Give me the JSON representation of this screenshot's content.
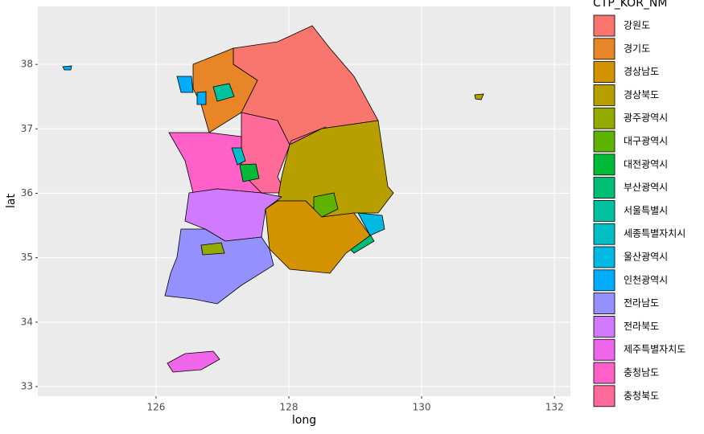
{
  "chart_data": {
    "type": "map",
    "x_label": "long",
    "y_label": "lat",
    "xlim": [
      124.22,
      132.24
    ],
    "ylim": [
      32.85,
      38.9
    ],
    "xticks": [
      126,
      128,
      130,
      132
    ],
    "yticks": [
      33,
      34,
      35,
      36,
      37,
      38
    ],
    "grid": true,
    "legend_title": "CTP_KOR_NM",
    "legend_position": "right",
    "series": [
      {
        "name": "강원도",
        "color": "#F8766D"
      },
      {
        "name": "경기도",
        "color": "#E88526"
      },
      {
        "name": "경상남도",
        "color": "#D39200"
      },
      {
        "name": "경상북도",
        "color": "#B79F00"
      },
      {
        "name": "광주광역시",
        "color": "#93AA00"
      },
      {
        "name": "대구광역시",
        "color": "#5EB300"
      },
      {
        "name": "대전광역시",
        "color": "#00BA38"
      },
      {
        "name": "부산광역시",
        "color": "#00BF74"
      },
      {
        "name": "서울특별시",
        "color": "#00C19F"
      },
      {
        "name": "세종특별자치시",
        "color": "#00BFC4"
      },
      {
        "name": "울산광역시",
        "color": "#00B9E3"
      },
      {
        "name": "인천광역시",
        "color": "#00ADFA"
      },
      {
        "name": "전라남도",
        "color": "#9590FF"
      },
      {
        "name": "전라북도",
        "color": "#D07BFF"
      },
      {
        "name": "제주특별자치도",
        "color": "#F066EA"
      },
      {
        "name": "충청남도",
        "color": "#FF61C9"
      },
      {
        "name": "충청북도",
        "color": "#FF6A98"
      }
    ]
  }
}
